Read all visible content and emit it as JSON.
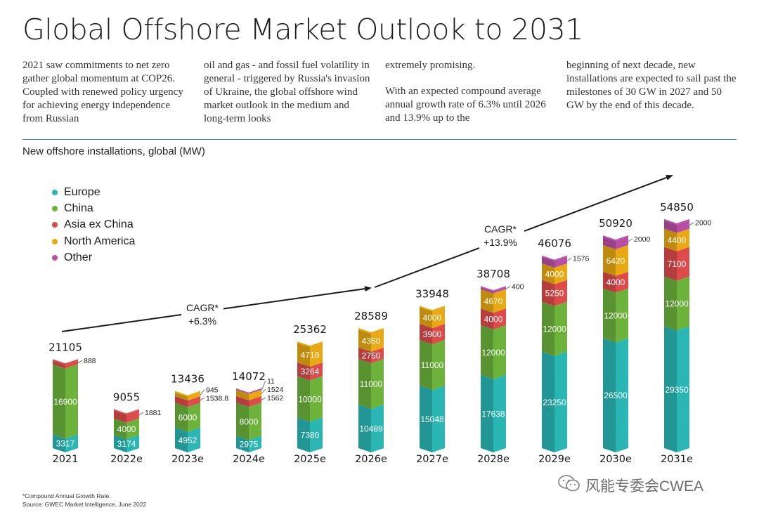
{
  "title": "Global Offshore Market Outlook to 2031",
  "body_text": {
    "col1": "2021 saw commitments to net zero gather global momentum at COP26. Coupled with renewed policy urgency for achieving energy independence from Russian",
    "col2": "oil and gas - and fossil fuel volatility in general - triggered by Russia's invasion of Ukraine, the global offshore wind market outlook in the medium and long-term looks",
    "col3a": "extremely promising.",
    "col3b": "With an expected compound average annual growth rate of 6.3% until 2026 and 13.9% up to the",
    "col4": "beginning of next decade, new installations are expected to sail past the milestones of 30 GW in 2027 and 50 GW by the end of this decade."
  },
  "footnote": {
    "line1": "*Compound Annual Growth Rate.",
    "line2": "Source: GWEC Market Intelligence, June 2022"
  },
  "watermark": "风能专委会CWEA",
  "colors": {
    "Europe": "#2ab7b4",
    "China": "#6cb23b",
    "Asia ex China": "#dd4b4b",
    "North America": "#e9a912",
    "Other": "#b94fa5",
    "rule": "#3d7f9a"
  },
  "chart_data": {
    "type": "bar",
    "stacked": true,
    "title": "New offshore installations, global (MW)",
    "categories": [
      "2021",
      "2022e",
      "2023e",
      "2024e",
      "2025e",
      "2026e",
      "2027e",
      "2028e",
      "2029e",
      "2030e",
      "2031e"
    ],
    "totals": [
      21105,
      9055,
      13436,
      14072,
      25362,
      28589,
      33948,
      38708,
      46076,
      50920,
      54850
    ],
    "series": [
      {
        "name": "Europe",
        "values": [
          3317,
          3174,
          4952,
          2975,
          7380,
          10489,
          15048,
          17638,
          23250,
          26500,
          29350
        ]
      },
      {
        "name": "China",
        "values": [
          16900,
          4000,
          6000,
          8000,
          10000,
          11000,
          11000,
          12000,
          12000,
          12000,
          12000
        ]
      },
      {
        "name": "Asia ex China",
        "values": [
          888,
          1881,
          1538.8,
          1562,
          3264,
          2750,
          3900,
          4000,
          5250,
          4000,
          7100
        ]
      },
      {
        "name": "North America",
        "values": [
          0,
          0,
          945,
          1524,
          4718,
          4350,
          4000,
          4670,
          4000,
          6420,
          4400
        ]
      },
      {
        "name": "Other",
        "values": [
          0,
          0,
          0,
          11,
          0,
          0,
          0,
          400,
          1576,
          2000,
          2000
        ]
      }
    ],
    "segment_labels": [
      [
        "3317",
        "16900",
        "888",
        "",
        ""
      ],
      [
        "3174",
        "4000",
        "1881",
        "",
        ""
      ],
      [
        "4952",
        "6000",
        "1538.8",
        "945",
        ""
      ],
      [
        "2975",
        "8000",
        "1562",
        "1524",
        "11"
      ],
      [
        "7380",
        "10000",
        "3264",
        "4718",
        ""
      ],
      [
        "10489",
        "11000",
        "2750",
        "4350",
        ""
      ],
      [
        "15048",
        "11000",
        "3900",
        "4000",
        ""
      ],
      [
        "17638",
        "12000",
        "4000",
        "4670",
        "400"
      ],
      [
        "23250",
        "12000",
        "5250",
        "4000",
        "1576"
      ],
      [
        "26500",
        "12000",
        "4000",
        "6420",
        "2000"
      ],
      [
        "29350",
        "12000",
        "7100",
        "4400",
        "2000"
      ]
    ],
    "annotations": [
      {
        "label": "CAGR*",
        "value": "+6.3%"
      },
      {
        "label": "CAGR*",
        "value": "+13.9%"
      }
    ],
    "legend": "top-left",
    "grid": false
  }
}
